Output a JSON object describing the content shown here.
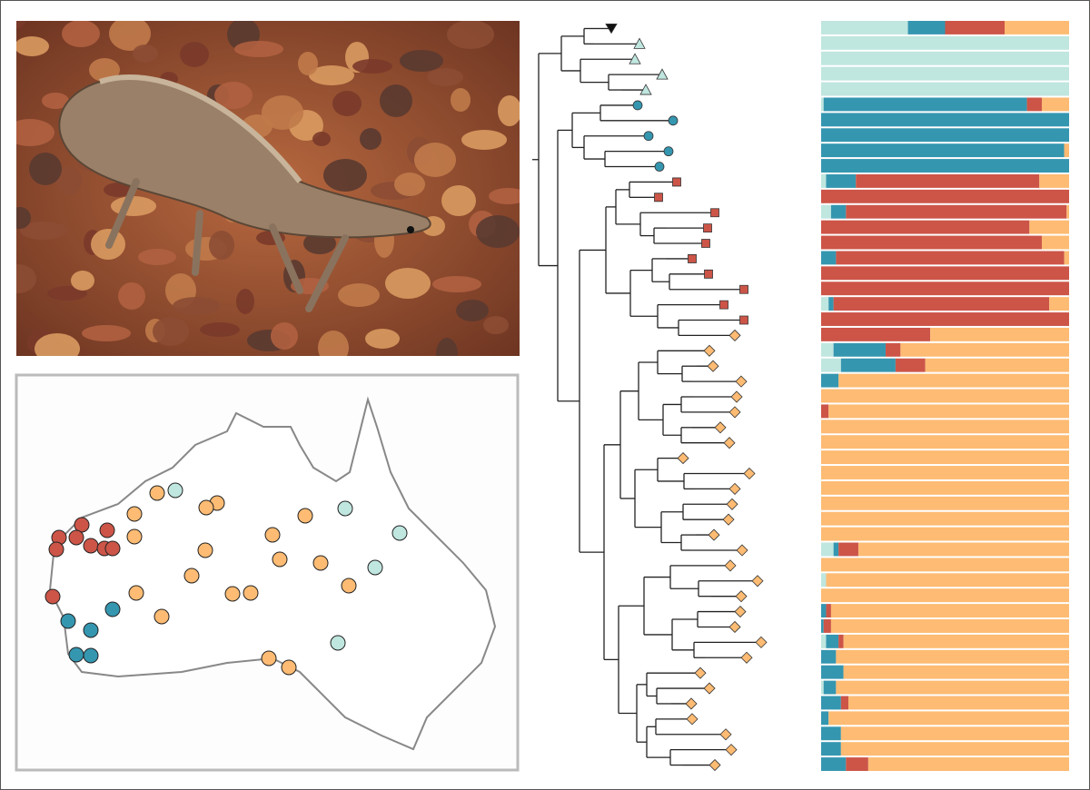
{
  "ancestry": {
    "colors": [
      "#bfe6df",
      "#3596b0",
      "#cc5548",
      "#fdbb73"
    ],
    "rows": [
      [
        35,
        15,
        24,
        26
      ],
      [
        100,
        0,
        0,
        0
      ],
      [
        100,
        0,
        0,
        0
      ],
      [
        100,
        0,
        0,
        0
      ],
      [
        100,
        0,
        0,
        0
      ],
      [
        1,
        82,
        6,
        11
      ],
      [
        0,
        100,
        0,
        0
      ],
      [
        0,
        100,
        0,
        0
      ],
      [
        0,
        98,
        0,
        2
      ],
      [
        0,
        100,
        0,
        0
      ],
      [
        2,
        12,
        74,
        12
      ],
      [
        0,
        0,
        100,
        0
      ],
      [
        4,
        6,
        89,
        1
      ],
      [
        0,
        0,
        84,
        16
      ],
      [
        0,
        0,
        89,
        11
      ],
      [
        0,
        6,
        92,
        2
      ],
      [
        0,
        0,
        100,
        0
      ],
      [
        0,
        0,
        100,
        0
      ],
      [
        3,
        2,
        87,
        8
      ],
      [
        0,
        0,
        100,
        0
      ],
      [
        0,
        0,
        44,
        56
      ],
      [
        5,
        21,
        6,
        68
      ],
      [
        8,
        22,
        12,
        58
      ],
      [
        0,
        7,
        0,
        93
      ],
      [
        0,
        0,
        0,
        100
      ],
      [
        0,
        0,
        3,
        97
      ],
      [
        0,
        0,
        0,
        100
      ],
      [
        0,
        0,
        0,
        100
      ],
      [
        0,
        0,
        0,
        100
      ],
      [
        0,
        0,
        0,
        100
      ],
      [
        0,
        0,
        0,
        100
      ],
      [
        0,
        0,
        0,
        100
      ],
      [
        0,
        0,
        0,
        100
      ],
      [
        0,
        0,
        0,
        100
      ],
      [
        5,
        2,
        8,
        85
      ],
      [
        0,
        0,
        0,
        100
      ],
      [
        2,
        0,
        0,
        98
      ],
      [
        0,
        0,
        0,
        100
      ],
      [
        0,
        2,
        2,
        96
      ],
      [
        0,
        1,
        3,
        96
      ],
      [
        2,
        5,
        2,
        91
      ],
      [
        0,
        6,
        0,
        94
      ],
      [
        0,
        9,
        0,
        91
      ],
      [
        1,
        5,
        0,
        94
      ],
      [
        0,
        8,
        3,
        89
      ],
      [
        0,
        3,
        0,
        97
      ],
      [
        0,
        8,
        0,
        92
      ],
      [
        0,
        8,
        0,
        92
      ],
      [
        0,
        10,
        9,
        81
      ]
    ]
  }
}
